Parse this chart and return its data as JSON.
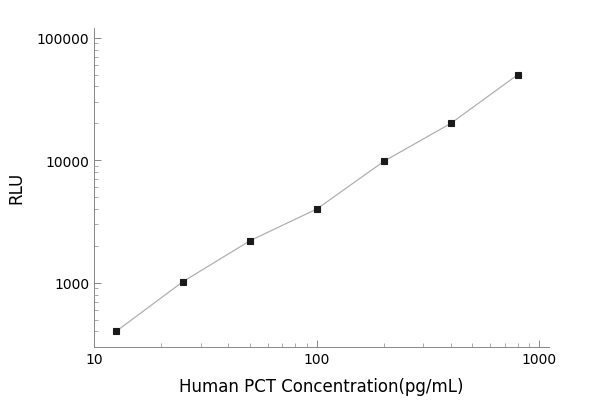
{
  "x": [
    12.5,
    25,
    50,
    100,
    200,
    400,
    800
  ],
  "y": [
    400,
    1020,
    2200,
    4000,
    9800,
    20000,
    50000
  ],
  "xlabel": "Human PCT Concentration(pg/mL)",
  "ylabel": "RLU",
  "xlim": [
    10,
    1100
  ],
  "ylim": [
    300,
    120000
  ],
  "line_color": "#b0b0b0",
  "marker_color": "#1a1a1a",
  "marker": "s",
  "marker_size": 5,
  "line_width": 0.9,
  "background_color": "#ffffff",
  "xlabel_fontsize": 12,
  "ylabel_fontsize": 12,
  "tick_fontsize": 10,
  "spine_color": "#888888",
  "tick_color": "#888888"
}
